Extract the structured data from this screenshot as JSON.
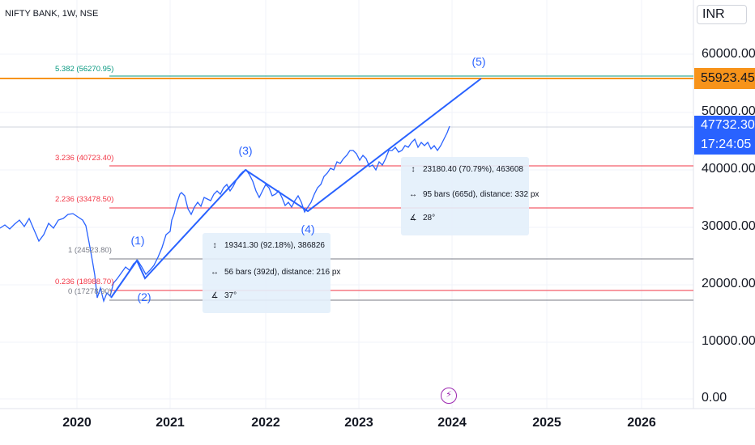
{
  "header": {
    "symbol": "NIFTY BANK, 1W, NSE",
    "currency": "INR"
  },
  "price_axis": {
    "ticks": [
      "60000.00",
      "50000.00",
      "40000.00",
      "30000.00",
      "20000.00",
      "10000.00",
      "0.00"
    ],
    "last_price": "47732.30",
    "countdown": "17:24:05",
    "level_price": "55923.45",
    "last_color": "#2962ff",
    "level_color": "#f7931a"
  },
  "time_axis": {
    "ticks": [
      "2020",
      "2021",
      "2022",
      "2023",
      "2024",
      "2025",
      "2026"
    ]
  },
  "fib_levels": [
    {
      "label": "5.382 (56270.95)",
      "color": "#089981"
    },
    {
      "label": "3.236 (40723.40)",
      "color": "#f23645"
    },
    {
      "label": "2.236 (33478.50)",
      "color": "#f23645"
    },
    {
      "label": "1 (24523.80)",
      "color": "#787b86"
    },
    {
      "label": "0.236 (18988.70)",
      "color": "#f23645"
    },
    {
      "label": "0 (17278.90)",
      "color": "#787b86"
    }
  ],
  "waves": [
    "(1)",
    "(2)",
    "(3)",
    "(4)",
    "(5)"
  ],
  "measure_1": {
    "price_range": "19341.30 (92.18%), 386826",
    "bars": "56 bars (392d), distance: 216 px",
    "angle": "37°"
  },
  "measure_2": {
    "price_range": "23180.40 (70.79%), 463608",
    "bars": "95 bars (665d), distance: 332 px",
    "angle": "28°"
  },
  "icons": {
    "range": "arrows-vertical-icon",
    "bars": "arrows-horizontal-icon",
    "angle": "angle-icon",
    "event": "lightning-icon"
  }
}
